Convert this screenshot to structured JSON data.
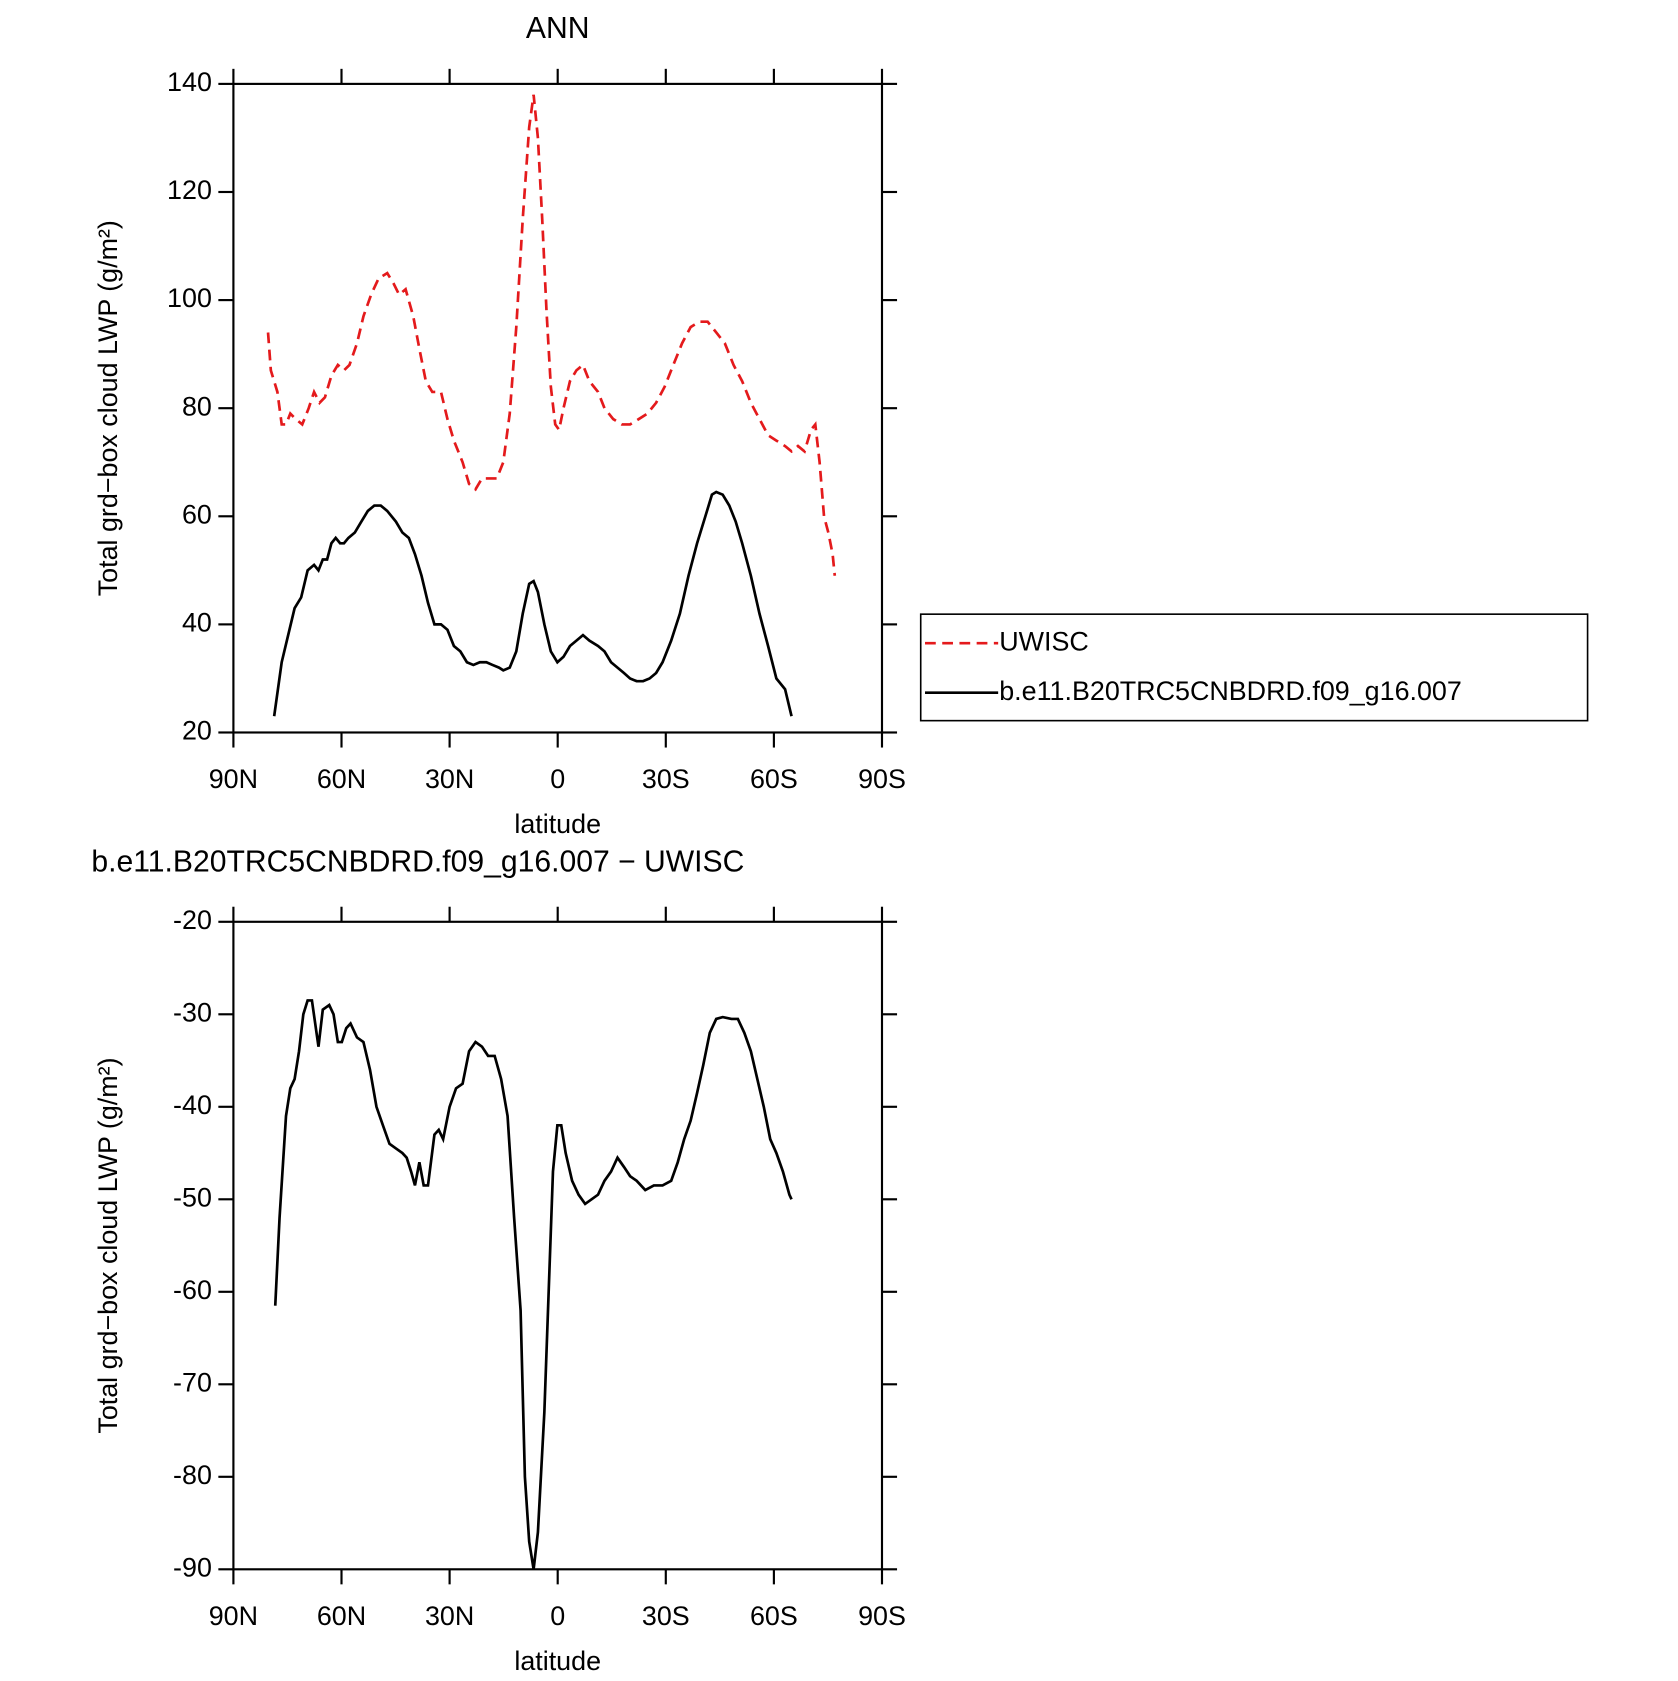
{
  "chart_data": [
    {
      "type": "line",
      "title": "ANN",
      "xlabel": "latitude",
      "ylabel": "Total grd−box cloud LWP (g/m²)",
      "xlim": [
        90,
        -90
      ],
      "xticks": [
        {
          "value": 90,
          "label": "90N"
        },
        {
          "value": 60,
          "label": "60N"
        },
        {
          "value": 30,
          "label": "30N"
        },
        0,
        {
          "value": -30,
          "label": "30S"
        },
        {
          "value": -60,
          "label": "60S"
        },
        {
          "value": -90,
          "label": "90S"
        }
      ],
      "ylim": [
        20,
        140
      ],
      "yticks": [
        20,
        40,
        60,
        80,
        100,
        120,
        140
      ],
      "legend": "outside-right",
      "series": [
        {
          "name": "UWISC",
          "color": "#e41a1c",
          "dash": true,
          "x": [
            80.4,
            79.6,
            77.8,
            76.6,
            75.4,
            74.2,
            72.7,
            70.9,
            69.1,
            67.6,
            66.1,
            64.6,
            62.8,
            61.0,
            59.3,
            57.8,
            55.7,
            53.9,
            51.8,
            49.7,
            47.3,
            45.5,
            44.0,
            42.2,
            40.1,
            38.4,
            36.6,
            34.8,
            32.4,
            30.6,
            28.8,
            26.4,
            24.6,
            22.8,
            21.0,
            19.0,
            16.9,
            15.1,
            13.3,
            11.5,
            9.7,
            7.9,
            6.7,
            5.5,
            4.3,
            3.1,
            1.9,
            0.7,
            -0.4,
            -1.6,
            -3.4,
            -5.2,
            -7.0,
            -8.8,
            -11.2,
            -13.0,
            -15.4,
            -17.8,
            -20.1,
            -22.5,
            -24.9,
            -27.3,
            -29.7,
            -32.1,
            -34.5,
            -36.9,
            -39.3,
            -41.6,
            -44.0,
            -46.4,
            -48.8,
            -51.2,
            -53.6,
            -56.0,
            -58.4,
            -60.7,
            -63.1,
            -64.9,
            -66.7,
            -68.5,
            -70.3,
            -71.5,
            -72.7,
            -73.9,
            -75.1,
            -76.3,
            -76.9
          ],
          "values": [
            94,
            87,
            83,
            77,
            77,
            79,
            78,
            77,
            80,
            83,
            81,
            82,
            86,
            88,
            87,
            88,
            92,
            97,
            101,
            104,
            105,
            103,
            101,
            102,
            97,
            91,
            85,
            83,
            83,
            78,
            74,
            70,
            66,
            65,
            67,
            67,
            67,
            70,
            79,
            95,
            115,
            132,
            138,
            130,
            115,
            98,
            84,
            77,
            76,
            80,
            85,
            87,
            88,
            85,
            83,
            80,
            78,
            77,
            77,
            78,
            79,
            81,
            84,
            88,
            92,
            95,
            96,
            96,
            94,
            92,
            88,
            85,
            81,
            78,
            75,
            74,
            73,
            72,
            73,
            72,
            76,
            77,
            70,
            60,
            57,
            53,
            49
          ]
        },
        {
          "name": "b.e11.B20TRC5CNBDRD.f09_g16.007",
          "color": "#000000",
          "dash": false,
          "x": [
            78.7,
            76.6,
            74.8,
            73.0,
            71.2,
            69.4,
            67.6,
            66.4,
            65.2,
            64.0,
            62.8,
            61.6,
            60.4,
            59.3,
            58.1,
            56.3,
            54.5,
            52.7,
            50.9,
            49.1,
            47.3,
            44.9,
            43.1,
            41.3,
            39.6,
            37.8,
            36.0,
            34.2,
            32.4,
            30.6,
            28.8,
            27.0,
            25.2,
            23.4,
            21.6,
            19.8,
            18.1,
            16.3,
            15.1,
            13.3,
            11.5,
            9.7,
            7.9,
            6.7,
            5.5,
            3.7,
            1.9,
            0.1,
            -1.6,
            -3.4,
            -5.2,
            -7.0,
            -8.8,
            -11.2,
            -13.0,
            -14.8,
            -16.6,
            -18.4,
            -20.1,
            -21.9,
            -23.7,
            -25.5,
            -27.3,
            -29.1,
            -31.5,
            -33.9,
            -36.3,
            -38.7,
            -41.0,
            -42.8,
            -44.0,
            -45.8,
            -47.6,
            -49.4,
            -51.2,
            -53.6,
            -56.0,
            -58.4,
            -60.7,
            -63.1,
            -64.9
          ],
          "values": [
            23,
            33,
            38,
            43,
            45,
            50,
            51,
            50,
            52,
            52,
            55,
            56,
            55,
            55,
            56,
            57,
            59,
            61,
            62,
            62,
            61,
            59,
            57,
            56,
            53,
            49,
            44,
            40,
            40,
            39,
            36,
            35,
            33,
            32.5,
            33,
            33,
            32.5,
            32,
            31.5,
            32,
            35,
            42,
            47.5,
            48,
            46,
            40,
            35,
            33,
            34,
            36,
            37,
            38,
            37,
            36,
            35,
            33,
            32,
            31,
            30,
            29.5,
            29.5,
            30,
            31,
            33,
            37,
            42,
            49,
            55,
            60,
            64,
            64.5,
            64,
            62,
            59,
            55,
            49,
            42,
            36,
            30,
            28,
            23
          ]
        }
      ]
    },
    {
      "type": "line",
      "title": "b.e11.B20TRC5CNBDRD.f09_g16.007 − UWISC",
      "xlabel": "latitude",
      "ylabel": "Total grd−box cloud LWP (g/m²)",
      "xlim": [
        90,
        -90
      ],
      "xticks": [
        {
          "value": 90,
          "label": "90N"
        },
        {
          "value": 60,
          "label": "60N"
        },
        {
          "value": 30,
          "label": "30N"
        },
        0,
        {
          "value": -30,
          "label": "30S"
        },
        {
          "value": -60,
          "label": "60S"
        },
        {
          "value": -90,
          "label": "90S"
        }
      ],
      "ylim": [
        -90,
        -20
      ],
      "yticks": [
        -90,
        -80,
        -70,
        -60,
        -50,
        -40,
        -30,
        -20
      ],
      "series": [
        {
          "color": "#000000",
          "dash": false,
          "x": [
            78.4,
            77.2,
            75.4,
            74.2,
            73.0,
            71.8,
            70.6,
            69.4,
            68.2,
            66.4,
            65.2,
            63.4,
            62.2,
            61.0,
            59.9,
            58.7,
            57.5,
            55.7,
            53.9,
            52.1,
            50.3,
            48.5,
            46.7,
            44.9,
            43.1,
            41.9,
            40.7,
            39.6,
            38.4,
            37.2,
            36.0,
            34.2,
            33.0,
            31.8,
            30.0,
            28.2,
            26.4,
            24.6,
            22.8,
            21.0,
            19.3,
            17.5,
            15.7,
            13.9,
            12.1,
            10.3,
            9.1,
            7.9,
            6.7,
            5.5,
            3.7,
            2.5,
            1.3,
            0.1,
            -1.0,
            -2.2,
            -4.0,
            -5.8,
            -7.6,
            -9.4,
            -11.2,
            -13.0,
            -14.8,
            -16.6,
            -18.4,
            -20.1,
            -21.9,
            -24.3,
            -26.7,
            -29.1,
            -31.5,
            -33.3,
            -35.1,
            -36.9,
            -38.7,
            -40.4,
            -42.2,
            -44.0,
            -45.8,
            -48.2,
            -50.0,
            -51.8,
            -53.6,
            -55.4,
            -57.2,
            -59.0,
            -60.7,
            -62.5,
            -64.3,
            -64.9
          ],
          "values": [
            -61.5,
            -52,
            -41,
            -38,
            -37,
            -34,
            -30,
            -28.5,
            -28.5,
            -33.5,
            -29.5,
            -29,
            -30,
            -33,
            -33,
            -31.5,
            -31,
            -32.5,
            -33,
            -36,
            -40,
            -42,
            -44,
            -44.5,
            -45,
            -45.5,
            -47,
            -48.5,
            -46,
            -48.5,
            -48.5,
            -43,
            -42.5,
            -43.5,
            -40,
            -38,
            -37.5,
            -34,
            -33,
            -33.5,
            -34.5,
            -34.5,
            -37,
            -41,
            -52,
            -62,
            -80,
            -87,
            -90,
            -86,
            -73,
            -60,
            -47,
            -42,
            -42,
            -45,
            -48,
            -49.5,
            -50.5,
            -50,
            -49.5,
            -48,
            -47,
            -45.5,
            -46.5,
            -47.5,
            -48,
            -49,
            -48.5,
            -48.5,
            -48,
            -46,
            -43.5,
            -41.5,
            -38.5,
            -35.5,
            -32,
            -30.5,
            -30.3,
            -30.5,
            -30.5,
            -32,
            -34,
            -37,
            -40,
            -43.5,
            -45,
            -47,
            -49.5,
            -50
          ]
        }
      ]
    }
  ]
}
